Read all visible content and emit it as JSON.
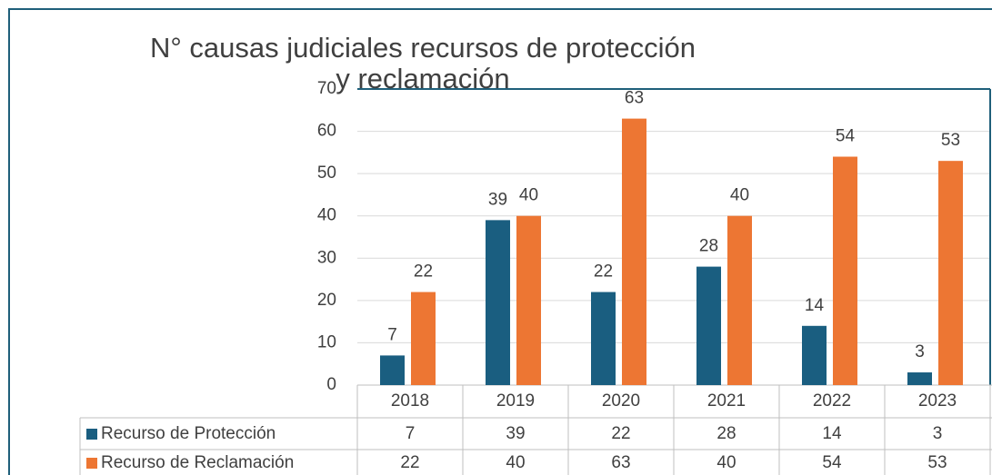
{
  "chart_data": {
    "type": "bar",
    "title": "N° causas judiciales recursos de protección y reclamación",
    "categories": [
      "2018",
      "2019",
      "2020",
      "2021",
      "2022",
      "2023"
    ],
    "series": [
      {
        "name": "Recurso de Protección",
        "color": "#1a5e80",
        "values": [
          7,
          39,
          22,
          28,
          14,
          3
        ]
      },
      {
        "name": "Recurso de Reclamación",
        "color": "#ed7633",
        "values": [
          22,
          40,
          63,
          40,
          54,
          53
        ]
      }
    ],
    "ylim": [
      0,
      70
    ],
    "yticks": [
      0,
      10,
      20,
      30,
      40,
      50,
      60,
      70
    ],
    "grid": true
  }
}
